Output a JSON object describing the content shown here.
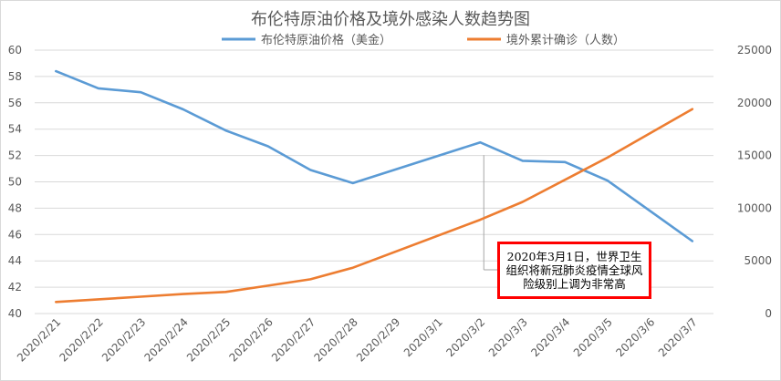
{
  "chart_data": {
    "type": "line",
    "title": "布伦特原油价格及境外感染人数趋势图",
    "categories": [
      "2020/2/21",
      "2020/2/22",
      "2020/2/23",
      "2020/2/24",
      "2020/2/25",
      "2020/2/26",
      "2020/2/27",
      "2020/2/28",
      "2020/2/29",
      "2020/3/1",
      "2020/3/2",
      "2020/3/3",
      "2020/3/4",
      "2020/3/5",
      "2020/3/6",
      "2020/3/7"
    ],
    "series": [
      {
        "name": "布伦特原油价格（美金）",
        "axis": "left",
        "color": "#5b9bd5",
        "values": [
          58.4,
          57.1,
          56.8,
          55.5,
          53.9,
          52.7,
          50.9,
          49.9,
          null,
          null,
          53.0,
          51.6,
          51.5,
          50.1,
          null,
          45.5
        ]
      },
      {
        "name": "境外累计确诊（人数）",
        "axis": "right",
        "color": "#ed7d31",
        "values": [
          1100,
          1350,
          1600,
          1850,
          2050,
          2650,
          3250,
          4350,
          null,
          null,
          8900,
          10600,
          null,
          14800,
          null,
          19400
        ]
      }
    ],
    "y_left": {
      "min": 40,
      "max": 60,
      "step": 2,
      "ticks": [
        "40",
        "42",
        "44",
        "46",
        "48",
        "50",
        "52",
        "54",
        "56",
        "58",
        "60"
      ]
    },
    "y_right": {
      "min": 0,
      "max": 25000,
      "step": 5000,
      "ticks": [
        "0",
        "5000",
        "10000",
        "15000",
        "20000",
        "25000"
      ]
    },
    "grid": true,
    "legend_position": "top",
    "annotation": {
      "text": "2020年3月1日，世界卫生组织将新冠肺炎疫情全球风险级别上调为非常高",
      "lines": [
        "2020年3月1日，世界",
        "卫生组织将新冠肺炎",
        "疫情全球风险级别上",
        "调为非常高"
      ],
      "target_category": "2020/3/2",
      "border_color": "#ff0000"
    }
  }
}
